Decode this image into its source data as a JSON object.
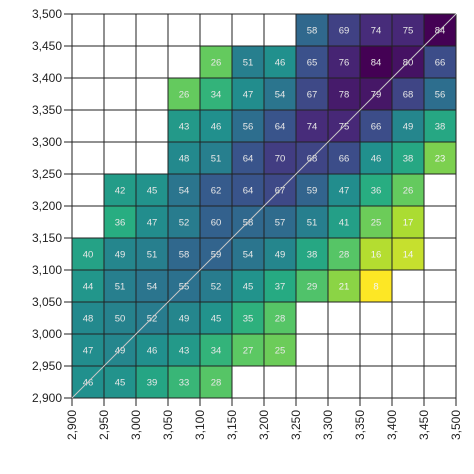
{
  "chart_data": {
    "type": "heatmap",
    "title": "",
    "xlabel": "",
    "ylabel": "",
    "xlim": [
      2900,
      3500
    ],
    "ylim": [
      2900,
      3500
    ],
    "x_ticks": [
      "2,900",
      "2,950",
      "3,000",
      "3,050",
      "3,100",
      "3,150",
      "3,200",
      "3,250",
      "3,300",
      "3,350",
      "3,400",
      "3,450",
      "3,500"
    ],
    "y_ticks": [
      "2,900",
      "2,950",
      "3,000",
      "3,050",
      "3,100",
      "3,150",
      "3,200",
      "3,250",
      "3,300",
      "3,350",
      "3,400",
      "3,450",
      "3,500"
    ],
    "bin_size": 50,
    "colormap": "viridis",
    "value_range": [
      8,
      84
    ],
    "diagonal_line": true,
    "rows": [
      {
        "y": 3475,
        "x_start": 3275,
        "values": [
          58,
          69,
          74,
          75,
          84
        ]
      },
      {
        "y": 3425,
        "x_start": 3125,
        "values": [
          26,
          51,
          46,
          65,
          76,
          84,
          80,
          66
        ]
      },
      {
        "y": 3375,
        "x_start": 3075,
        "values": [
          26,
          34,
          47,
          54,
          67,
          78,
          79,
          68,
          56
        ]
      },
      {
        "y": 3325,
        "x_start": 3075,
        "values": [
          43,
          46,
          56,
          64,
          74,
          75,
          66,
          49,
          38
        ]
      },
      {
        "y": 3275,
        "x_start": 3075,
        "values": [
          48,
          51,
          64,
          70,
          68,
          66,
          46,
          38,
          23
        ]
      },
      {
        "y": 3225,
        "x_start": 2975,
        "values": [
          42,
          45,
          54,
          62,
          64,
          67,
          59,
          47,
          36,
          26
        ]
      },
      {
        "y": 3175,
        "x_start": 2975,
        "values": [
          36,
          47,
          52,
          60,
          58,
          57,
          51,
          41,
          25,
          17
        ]
      },
      {
        "y": 3125,
        "x_start": 2925,
        "values": [
          40,
          49,
          51,
          58,
          59,
          54,
          49,
          38,
          28,
          16,
          14
        ]
      },
      {
        "y": 3075,
        "x_start": 2925,
        "values": [
          44,
          51,
          54,
          55,
          52,
          45,
          37,
          29,
          21,
          8
        ]
      },
      {
        "y": 3025,
        "x_start": 2925,
        "values": [
          48,
          50,
          52,
          49,
          45,
          35,
          28
        ]
      },
      {
        "y": 2975,
        "x_start": 2925,
        "values": [
          47,
          49,
          46,
          43,
          34,
          27,
          25
        ]
      },
      {
        "y": 2925,
        "x_start": 2925,
        "values": [
          46,
          45,
          39,
          33,
          28
        ]
      }
    ]
  }
}
